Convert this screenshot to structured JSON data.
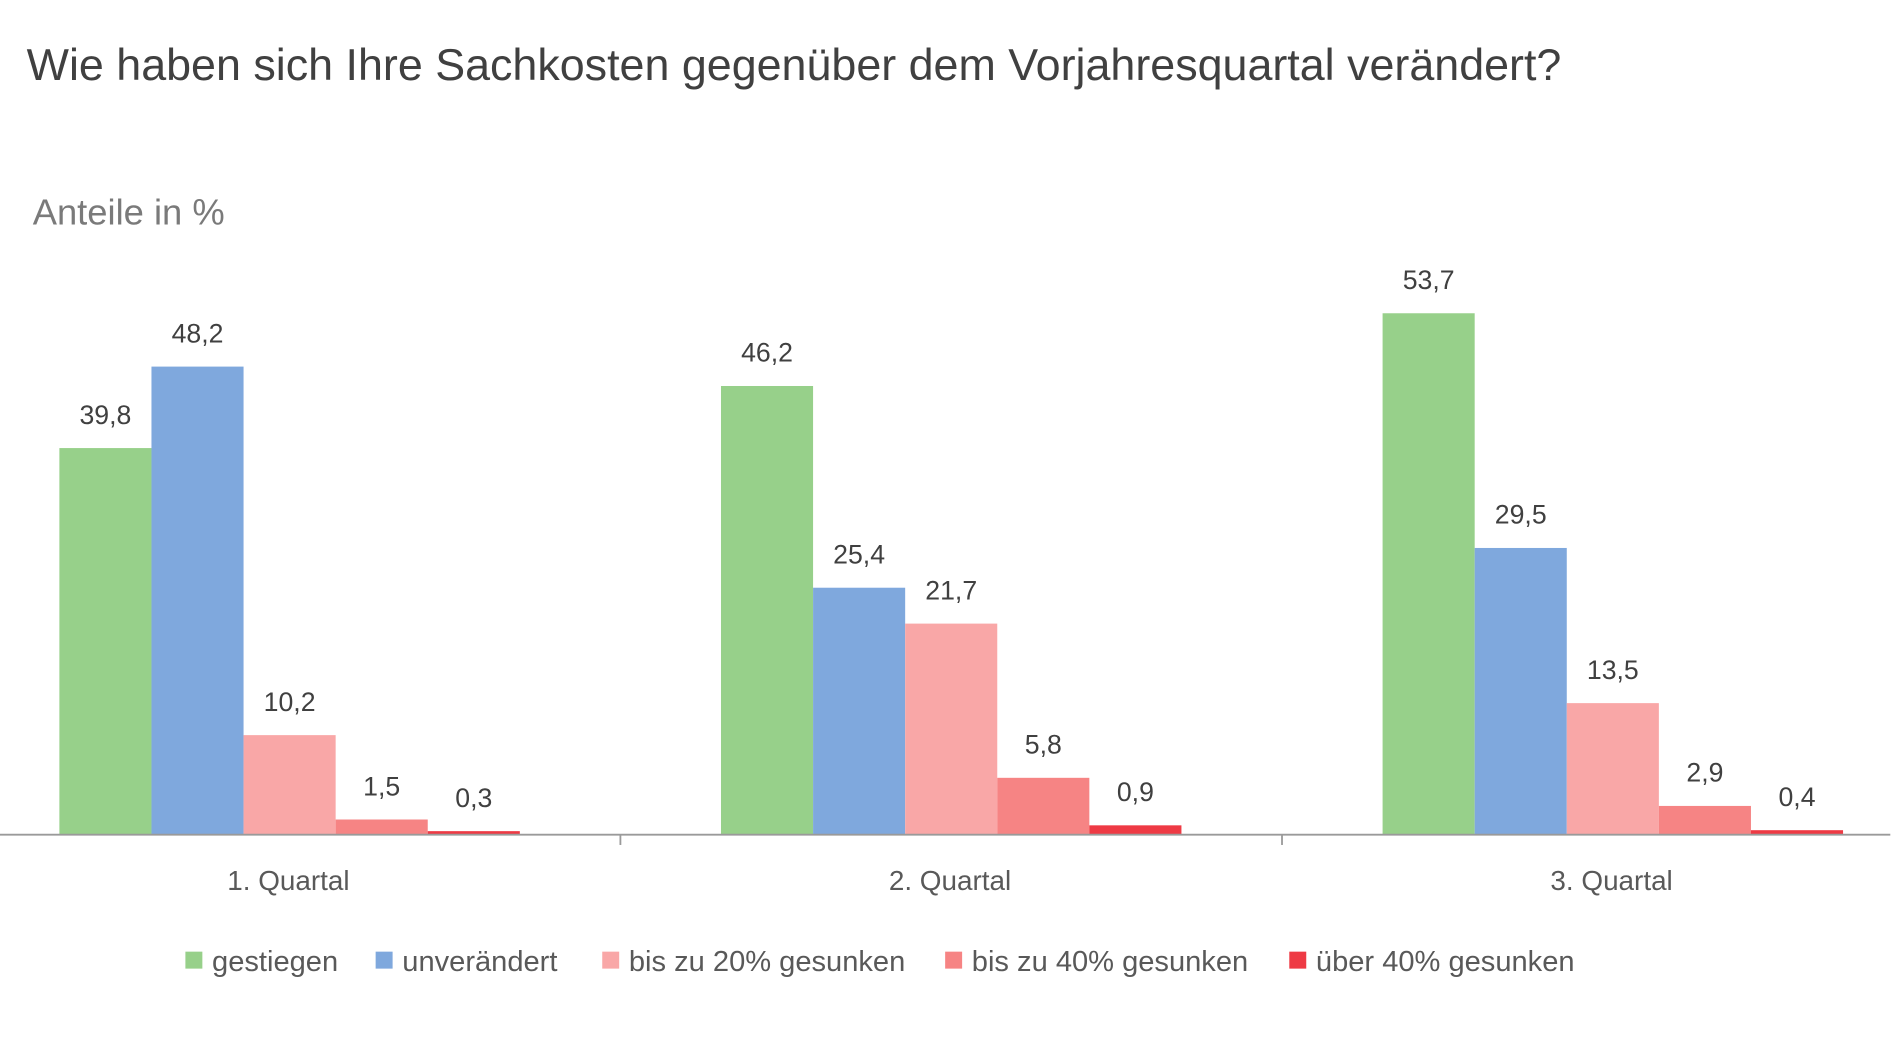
{
  "chart_data": {
    "type": "bar",
    "title": "Wie haben sich Ihre Sachkosten gegenüber dem Vorjahresquartal verändert?",
    "subtitle": "Anteile in %",
    "xlabel": "",
    "ylabel": "",
    "ylim": [
      0,
      56
    ],
    "grid": false,
    "legend_position": "bottom",
    "categories": [
      "1. Quartal",
      "2. Quartal",
      "3. Quartal"
    ],
    "series": [
      {
        "name": "gestiegen",
        "color": "#97d08a",
        "values": [
          39.8,
          46.2,
          53.7
        ],
        "labels": [
          "39,8",
          "46,2",
          "53,7"
        ]
      },
      {
        "name": "unverändert",
        "color": "#7fa8dd",
        "values": [
          48.2,
          25.4,
          29.5
        ],
        "labels": [
          "48,2",
          "25,4",
          "29,5"
        ]
      },
      {
        "name": "bis zu 20% gesunken",
        "color": "#f9a7a7",
        "values": [
          10.2,
          21.7,
          13.5
        ],
        "labels": [
          "10,2",
          "21,7",
          "13,5"
        ]
      },
      {
        "name": "bis zu 40% gesunken",
        "color": "#f68484",
        "values": [
          1.5,
          5.8,
          2.9
        ],
        "labels": [
          "1,5",
          "5,8",
          "2,9"
        ]
      },
      {
        "name": "über 40% gesunken",
        "color": "#ee3a44",
        "values": [
          0.3,
          0.9,
          0.4
        ],
        "labels": [
          "0,3",
          "0,9",
          "0,4"
        ]
      }
    ]
  }
}
